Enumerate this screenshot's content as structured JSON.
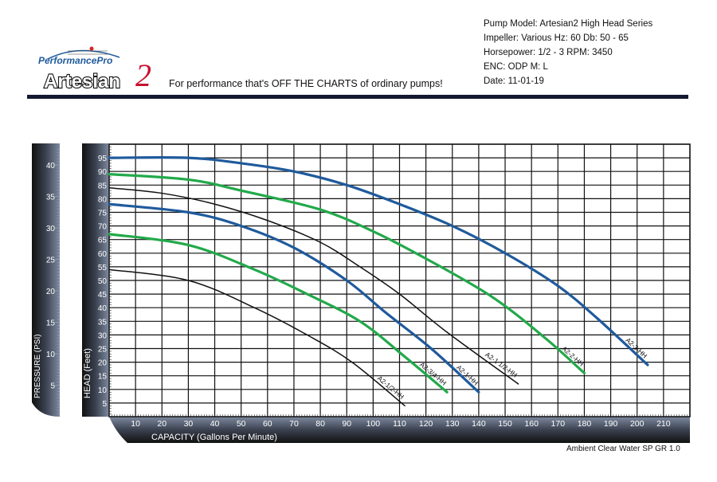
{
  "header": {
    "logo_text": "PerformancePro Artesian2",
    "tagline": "For performance that's OFF THE CHARTS of ordinary pumps!",
    "specs": [
      "Pump Model:  Artesian2 High Head Series",
      "Impeller:  Various    Hz: 60   Db: 50 - 65",
      "Horsepower:   1/2 - 3    RPM: 3450",
      "ENC:  ODP     M: L",
      "Date:  11-01-19"
    ]
  },
  "footer": "Ambient Clear Water SP GR 1.0",
  "chart_data": {
    "type": "line",
    "xlabel": "CAPACITY (Gallons Per Minute)",
    "ylabel": "HEAD (Feet)",
    "y2label": "PRESSURE (PSI)",
    "xlim": [
      0,
      220
    ],
    "ylim": [
      0,
      100
    ],
    "y2lim": [
      0,
      43.3
    ],
    "xticks": [
      10,
      20,
      30,
      40,
      50,
      60,
      70,
      80,
      90,
      100,
      110,
      120,
      130,
      140,
      150,
      160,
      170,
      180,
      190,
      200,
      210
    ],
    "yticks": [
      5,
      10,
      15,
      20,
      25,
      30,
      35,
      40,
      45,
      50,
      55,
      60,
      65,
      70,
      75,
      80,
      85,
      90,
      95
    ],
    "y2ticks": [
      5,
      10,
      15,
      20,
      25,
      30,
      35,
      40
    ],
    "grid": true,
    "colors": {
      "blue": "#1f5a9c",
      "green": "#22a94a",
      "black": "#111111"
    },
    "series": [
      {
        "name": "A2-3-HH",
        "color": "blue",
        "x": [
          0,
          30,
          50,
          70,
          90,
          110,
          130,
          150,
          170,
          185,
          204
        ],
        "y": [
          95,
          95,
          93,
          90,
          85,
          78,
          70,
          60,
          48,
          36,
          19
        ]
      },
      {
        "name": "A2-2-HH",
        "color": "green",
        "x": [
          0,
          30,
          50,
          80,
          100,
          120,
          145,
          165,
          180
        ],
        "y": [
          89,
          87,
          83,
          76,
          68,
          58,
          44,
          29,
          16
        ]
      },
      {
        "name": "A2-1 1/2-HH",
        "color": "black",
        "x": [
          0,
          20,
          40,
          60,
          80,
          95,
          110,
          128,
          155
        ],
        "y": [
          84,
          82,
          78,
          72,
          64,
          55,
          45,
          31,
          12
        ]
      },
      {
        "name": "A2-1-HH",
        "color": "blue",
        "x": [
          0,
          30,
          50,
          70,
          90,
          105,
          122,
          140
        ],
        "y": [
          78,
          75,
          70,
          62,
          50,
          38,
          25,
          9
        ]
      },
      {
        "name": "A2-3/4-HH",
        "color": "green",
        "x": [
          0,
          30,
          55,
          75,
          95,
          112,
          128
        ],
        "y": [
          67,
          63,
          54,
          45,
          35,
          22,
          9
        ]
      },
      {
        "name": "A2-1/2-HH",
        "color": "black",
        "x": [
          0,
          30,
          55,
          75,
          92,
          112
        ],
        "y": [
          54,
          50,
          40,
          30,
          20,
          4
        ]
      }
    ]
  }
}
